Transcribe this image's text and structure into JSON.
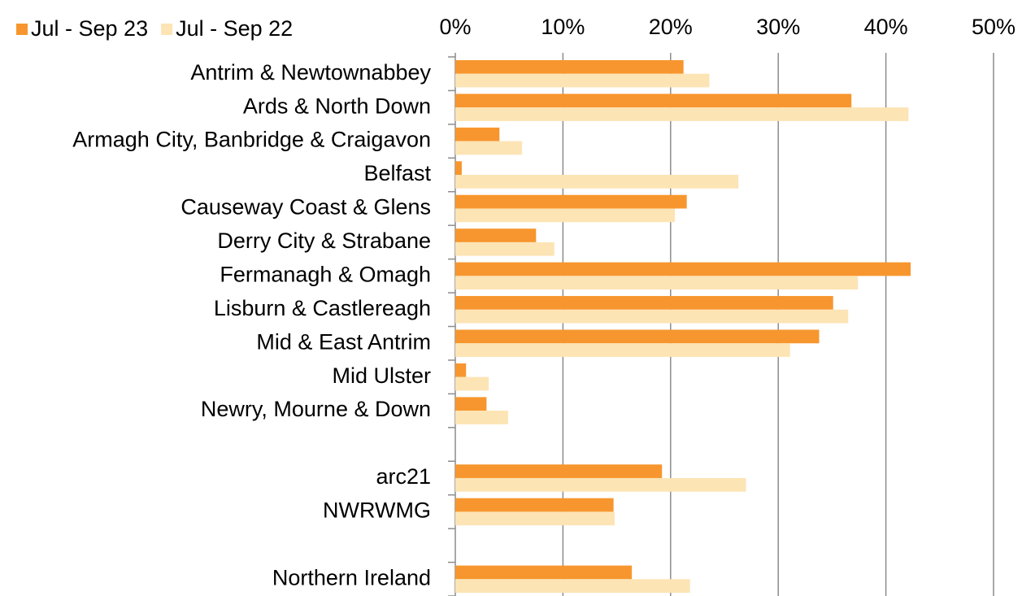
{
  "chart_data": {
    "type": "bar",
    "orientation": "horizontal",
    "categories": [
      "Antrim & Newtownabbey",
      "Ards & North Down",
      "Armagh City, Banbridge & Craigavon",
      "Belfast",
      "Causeway Coast & Glens",
      "Derry City & Strabane",
      "Fermanagh & Omagh",
      "Lisburn & Castlereagh",
      "Mid & East Antrim",
      "Mid Ulster",
      "Newry, Mourne & Down",
      null,
      "arc21",
      "NWRWMG",
      null,
      "Northern Ireland"
    ],
    "series": [
      {
        "name": "Jul - Sep 23",
        "color": "#f7962e",
        "values": [
          21.2,
          36.8,
          4.1,
          0.6,
          21.5,
          7.5,
          42.3,
          35.1,
          33.8,
          1.0,
          2.9,
          null,
          19.2,
          14.7,
          null,
          16.4
        ]
      },
      {
        "name": "Jul - Sep 22",
        "color": "#fde4b4",
        "values": [
          23.6,
          42.1,
          6.2,
          26.3,
          20.4,
          9.2,
          37.4,
          36.5,
          31.1,
          3.1,
          4.9,
          null,
          27.0,
          14.8,
          null,
          21.8
        ]
      }
    ],
    "xlim": [
      0,
      50
    ],
    "xticks": [
      {
        "value": 0,
        "label": "0%"
      },
      {
        "value": 10,
        "label": "10%"
      },
      {
        "value": 20,
        "label": "20%"
      },
      {
        "value": 30,
        "label": "30%"
      },
      {
        "value": 40,
        "label": "40%"
      },
      {
        "value": 50,
        "label": "50%"
      }
    ],
    "grid": true,
    "legend": "top-left"
  }
}
